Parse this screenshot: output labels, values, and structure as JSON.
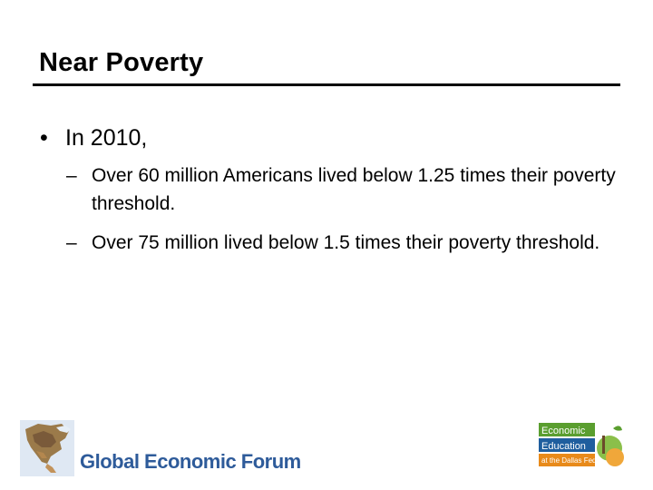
{
  "slide": {
    "title": "Near Poverty",
    "bullet": {
      "marker": "•",
      "text": "In 2010,"
    },
    "sub_bullets": [
      {
        "marker": "–",
        "text": "Over 60 million Americans lived below 1.25 times their poverty threshold."
      },
      {
        "marker": "–",
        "text": "Over 75 million lived below 1.5 times their poverty threshold."
      }
    ]
  },
  "footer": {
    "left_logo_text": "Global Economic Forum",
    "left_logo_icon": "north-america-map-icon",
    "right_logo_lines": [
      "Economic",
      "Education",
      "at the Dallas Fed"
    ],
    "colors": {
      "gef_blue": "#2e5b9a",
      "ee_green": "#5a9e2f",
      "ee_blue": "#1f5e9e",
      "ee_orange": "#e88a1a"
    }
  }
}
